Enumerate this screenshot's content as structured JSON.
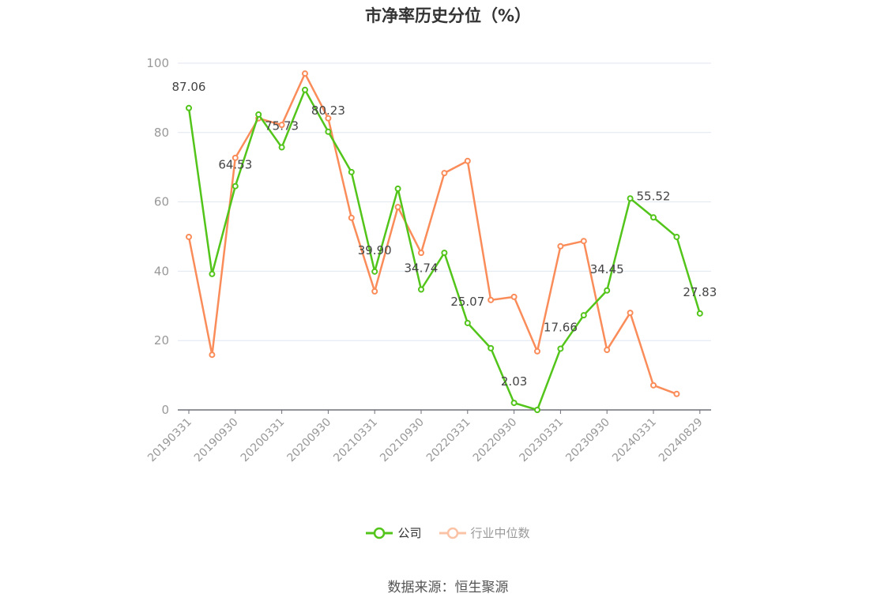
{
  "chart_data": {
    "type": "line",
    "title": "市净率历史分位（%）",
    "categories": [
      "20190331",
      "20190630",
      "20190930",
      "20191231",
      "20200331",
      "20200630",
      "20200930",
      "20201231",
      "20210331",
      "20210630",
      "20210930",
      "20211231",
      "20220331",
      "20220630",
      "20220930",
      "20221231",
      "20230331",
      "20230630",
      "20230930",
      "20231231",
      "20240331",
      "20240630",
      "20240829"
    ],
    "ylim": [
      0,
      100
    ],
    "yticks": [
      0,
      20,
      40,
      60,
      80,
      100
    ],
    "grid": true,
    "legend_position": "bottom",
    "series": [
      {
        "name": "公司",
        "color": "#52c41a",
        "values": [
          87.06,
          39.2,
          64.53,
          85.2,
          75.73,
          92.3,
          80.23,
          68.6,
          39.9,
          63.8,
          34.74,
          45.3,
          25.07,
          17.8,
          2.03,
          0.0,
          17.66,
          27.3,
          34.45,
          61.0,
          55.52,
          49.9,
          27.83
        ],
        "labels": [
          "87.06",
          null,
          "64.53",
          null,
          "75.73",
          null,
          "80.23",
          null,
          "39.90",
          null,
          "34.74",
          null,
          "25.07",
          null,
          "2.03",
          null,
          "17.66",
          null,
          "34.45",
          null,
          "55.52",
          null,
          "27.83"
        ]
      },
      {
        "name": "行业中位数",
        "color": "#fa8c5a",
        "values": [
          49.9,
          15.9,
          72.7,
          84.1,
          82.2,
          97.0,
          84.1,
          55.4,
          34.2,
          58.5,
          45.3,
          68.3,
          71.8,
          31.7,
          32.6,
          16.9,
          47.2,
          48.7,
          17.3,
          28.0,
          7.1,
          4.6,
          null
        ]
      }
    ]
  },
  "legend": {
    "company": "公司",
    "industry": "行业中位数"
  },
  "source": "数据来源：恒生聚源"
}
